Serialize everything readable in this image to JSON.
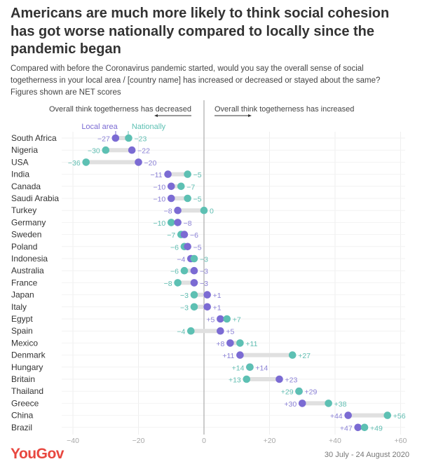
{
  "header": {
    "title_lines": [
      "Americans are much more likely to think social cohesion",
      "has got worse nationally compared to locally since the",
      "pandemic began"
    ],
    "subtitle_lines": [
      "Compared with before the Coronavirus pandemic started, would you say the overall sense of social",
      "togetherness in your local area / [country name] has increased or decreased or stayed about the same?",
      "Figures shown are NET scores"
    ]
  },
  "chart_data": {
    "type": "scatter",
    "variant": "dumbbell",
    "title": "Americans are much more likely to think social cohesion has got worse nationally compared to locally since the pandemic began",
    "subtitle": "Compared with before the Coronavirus pandemic started, would you say the overall sense of social togetherness in your local area / [country name] has increased or decreased or stayed about the same? Figures shown are NET scores",
    "xlabel": "",
    "ylabel": "",
    "xlim": [
      -40,
      60
    ],
    "grid": true,
    "legend_position": "top-left",
    "direction_labels": {
      "decreased": "Overall think togetherness has decreased",
      "increased": "Overall think togetherness has increased"
    },
    "x_ticks": [
      -40,
      -20,
      0,
      20,
      40,
      60
    ],
    "x_tick_labels": [
      "−40",
      "−20",
      "0",
      "+20",
      "+40",
      "+60"
    ],
    "categories": [
      "South Africa",
      "Nigeria",
      "USA",
      "India",
      "Canada",
      "Saudi Arabia",
      "Turkey",
      "Germany",
      "Sweden",
      "Poland",
      "Indonesia",
      "Australia",
      "France",
      "Japan",
      "Italy",
      "Egypt",
      "Spain",
      "Mexico",
      "Denmark",
      "Hungary",
      "Britain",
      "Thailand",
      "Greece",
      "China",
      "Brazil"
    ],
    "series": [
      {
        "name": "Local area",
        "color": "#7b6bd3",
        "label_color": "#8a80d6",
        "values": [
          -27,
          -22,
          -20,
          -11,
          -10,
          -10,
          -8,
          -8,
          -6,
          -5,
          -4,
          -3,
          -3,
          1,
          1,
          5,
          5,
          8,
          11,
          14,
          23,
          29,
          30,
          44,
          47
        ],
        "labels": [
          "−27",
          "−22",
          "−20",
          "−11",
          "−10",
          "−10",
          "−8",
          "−8",
          "−6",
          "−5",
          "−4",
          "−3",
          "−3",
          "+1",
          "+1",
          "+5",
          "+5",
          "+8",
          "+11",
          "+14",
          "+23",
          "+29",
          "+30",
          "+44",
          "+47"
        ]
      },
      {
        "name": "Nationally",
        "color": "#5dc0b3",
        "label_color": "#5fbdb1",
        "values": [
          -23,
          -30,
          -36,
          -5,
          -7,
          -5,
          0,
          -10,
          -7,
          -6,
          -3,
          -6,
          -8,
          -3,
          -3,
          7,
          -4,
          11,
          27,
          14,
          13,
          29,
          38,
          56,
          49
        ],
        "labels": [
          "−23",
          "−30",
          "−36",
          "−5",
          "−7",
          "−5",
          "0",
          "−10",
          "−7",
          "−6",
          "−3",
          "−6",
          "−8",
          "−3",
          "−3",
          "+7",
          "−4",
          "+11",
          "+27",
          "+14",
          "+13",
          "+29",
          "+38",
          "+56",
          "+49"
        ]
      }
    ]
  },
  "footer": {
    "brand": "YouGov",
    "date": "30 July - 24 August 2020"
  },
  "colors": {
    "title": "#333333",
    "brand": "#e8473f",
    "connector": "#e0e0e0",
    "zero_line": "#9a9a9a",
    "gridline": "#eeeeee"
  }
}
